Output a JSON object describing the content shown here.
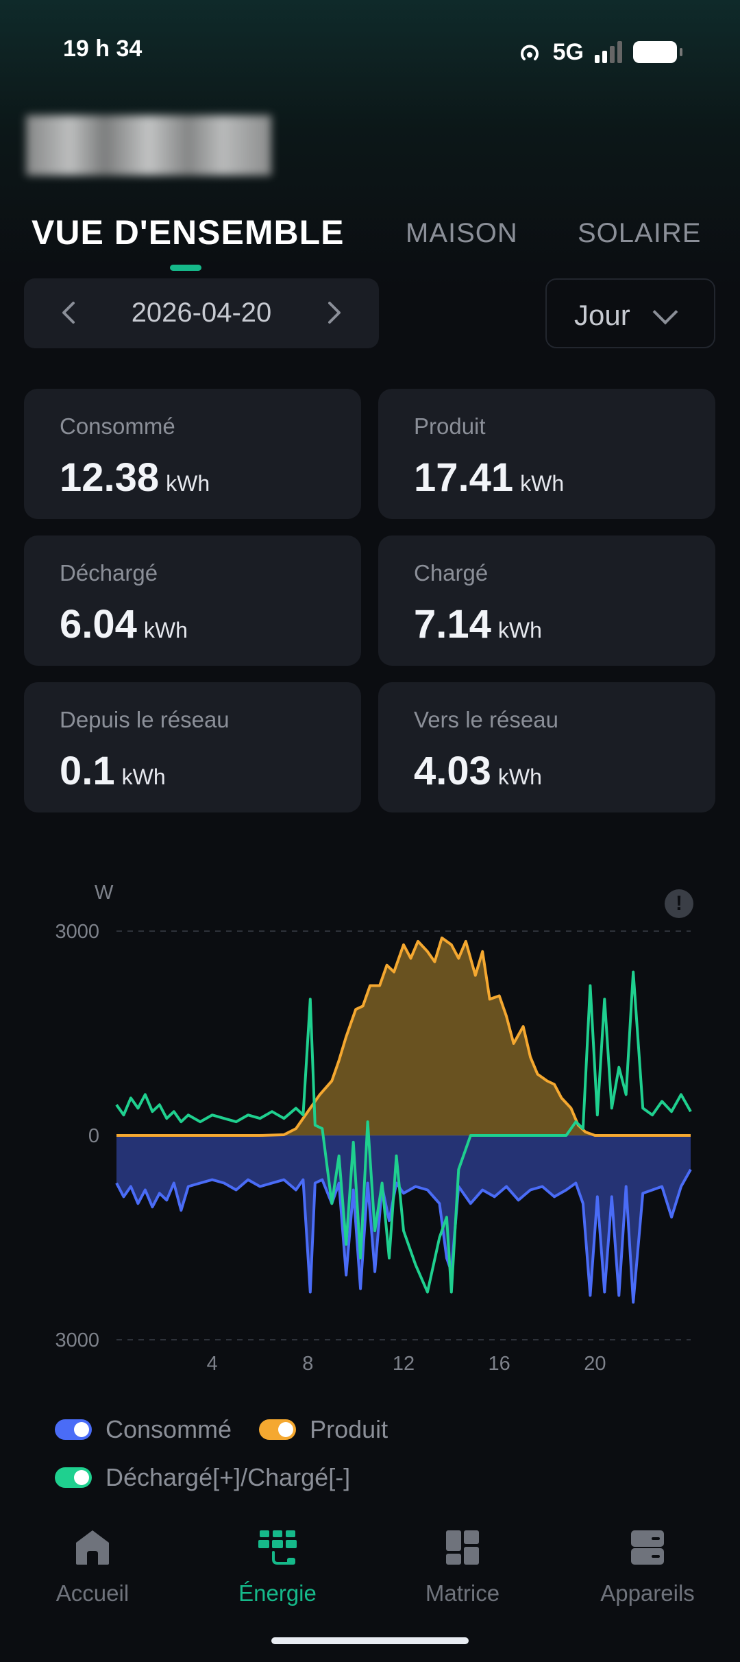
{
  "status": {
    "time": "19 h 34",
    "network": "5G"
  },
  "tabs": [
    {
      "label": "VUE D'ENSEMBLE",
      "active": true
    },
    {
      "label": "MAISON",
      "active": false
    },
    {
      "label": "SOLAIRE",
      "active": false
    }
  ],
  "date_selector": {
    "date": "2026-04-20",
    "prev_icon": "chevron-left-icon",
    "next_icon": "chevron-right-icon"
  },
  "period_selector": {
    "value": "Jour"
  },
  "stats": [
    {
      "label": "Consommé",
      "value": "12.38",
      "unit": "kWh"
    },
    {
      "label": "Produit",
      "value": "17.41",
      "unit": "kWh"
    },
    {
      "label": "Déchargé",
      "value": "6.04",
      "unit": "kWh"
    },
    {
      "label": "Chargé",
      "value": "7.14",
      "unit": "kWh"
    },
    {
      "label": "Depuis le réseau",
      "value": "0.1",
      "unit": "kWh"
    },
    {
      "label": "Vers le réseau",
      "value": "4.03",
      "unit": "kWh"
    }
  ],
  "chart_data": {
    "type": "area",
    "ylabel": "W",
    "ytick_labels": [
      "3000",
      "0",
      "3000"
    ],
    "xtick_labels": [
      "4",
      "8",
      "12",
      "16",
      "20"
    ],
    "xlim": [
      0,
      24
    ],
    "ylim": [
      -3000,
      3000
    ],
    "grid": "dashed horizontal",
    "series": [
      {
        "name": "Consommé",
        "color": "#4a6cf7",
        "x": [
          0,
          0.3,
          0.6,
          0.9,
          1.2,
          1.5,
          1.8,
          2.1,
          2.4,
          2.7,
          3,
          3.5,
          4,
          4.5,
          5,
          5.5,
          6,
          6.5,
          7,
          7.5,
          7.8,
          8.1,
          8.3,
          8.6,
          9,
          9.3,
          9.6,
          9.9,
          10.2,
          10.5,
          10.8,
          11.1,
          11.4,
          11.7,
          12,
          12.5,
          13,
          13.5,
          13.8,
          14,
          14.3,
          14.8,
          15.3,
          15.8,
          16.3,
          16.8,
          17.3,
          17.8,
          18.3,
          18.8,
          19.2,
          19.5,
          19.8,
          20.1,
          20.4,
          20.7,
          21,
          21.3,
          21.6,
          22,
          22.4,
          22.8,
          23.2,
          23.6,
          24
        ],
        "values": [
          -700,
          -900,
          -750,
          -1000,
          -800,
          -1050,
          -850,
          -950,
          -700,
          -1100,
          -750,
          -700,
          -650,
          -700,
          -800,
          -650,
          -750,
          -700,
          -650,
          -800,
          -650,
          -2300,
          -700,
          -650,
          -1000,
          -700,
          -2050,
          -800,
          -2250,
          -700,
          -2000,
          -750,
          -1250,
          -700,
          -850,
          -750,
          -800,
          -1000,
          -1800,
          -2000,
          -750,
          -1000,
          -800,
          -900,
          -750,
          -950,
          -800,
          -750,
          -900,
          -800,
          -700,
          -1000,
          -2350,
          -900,
          -2300,
          -900,
          -2350,
          -750,
          -2450,
          -850,
          -800,
          -750,
          -1200,
          -750,
          -500
        ],
        "units_note": "values in W"
      },
      {
        "name": "Produit",
        "color": "#f5a830",
        "x": [
          0,
          6,
          7,
          7.5,
          8,
          8.5,
          9,
          9.3,
          9.6,
          10,
          10.3,
          10.6,
          11,
          11.3,
          11.6,
          12,
          12.3,
          12.6,
          13,
          13.3,
          13.6,
          14,
          14.3,
          14.6,
          15,
          15.3,
          15.6,
          16,
          16.3,
          16.6,
          17,
          17.3,
          17.6,
          18,
          18.3,
          18.6,
          19,
          19.3,
          19.6,
          20,
          21,
          22,
          23,
          24
        ],
        "values": [
          0,
          0,
          10,
          100,
          350,
          600,
          800,
          1100,
          1450,
          1850,
          1900,
          2200,
          2200,
          2500,
          2400,
          2800,
          2600,
          2850,
          2700,
          2550,
          2900,
          2800,
          2600,
          2850,
          2350,
          2700,
          2000,
          2050,
          1750,
          1350,
          1600,
          1150,
          900,
          800,
          750,
          550,
          400,
          150,
          50,
          0,
          0,
          0,
          0,
          0
        ],
        "units_note": "values in W"
      },
      {
        "name": "Déchargé[+]/Chargé[-]",
        "color": "#1fd08f",
        "x": [
          0,
          0.3,
          0.6,
          0.9,
          1.2,
          1.5,
          1.8,
          2.1,
          2.4,
          2.7,
          3,
          3.5,
          4,
          4.5,
          5,
          5.5,
          6,
          6.5,
          7,
          7.5,
          7.8,
          8.1,
          8.3,
          8.6,
          9,
          9.3,
          9.6,
          9.9,
          10.2,
          10.5,
          10.8,
          11.1,
          11.4,
          11.7,
          12,
          12.5,
          13,
          13.5,
          13.8,
          14,
          14.3,
          14.8,
          15.3,
          15.8,
          16.3,
          16.8,
          17.3,
          17.8,
          18.3,
          18.8,
          19.2,
          19.5,
          19.8,
          20.1,
          20.4,
          20.7,
          21,
          21.3,
          21.6,
          22,
          22.4,
          22.8,
          23.2,
          23.6,
          24
        ],
        "values": [
          450,
          300,
          550,
          400,
          600,
          350,
          450,
          250,
          350,
          200,
          300,
          200,
          300,
          250,
          200,
          300,
          250,
          350,
          250,
          400,
          300,
          2000,
          150,
          100,
          -1000,
          -300,
          -1600,
          -100,
          -1800,
          200,
          -1400,
          -700,
          -1800,
          -300,
          -1400,
          -1900,
          -2300,
          -1500,
          -1200,
          -2300,
          -500,
          0,
          0,
          0,
          0,
          0,
          0,
          0,
          0,
          0,
          200,
          100,
          2200,
          300,
          2000,
          400,
          1000,
          600,
          2400,
          400,
          300,
          500,
          350,
          600,
          350
        ],
        "units_note": "values in W"
      }
    ]
  },
  "legend": [
    {
      "label": "Consommé",
      "color": "#4a6cf7"
    },
    {
      "label": "Produit",
      "color": "#f5a830"
    },
    {
      "label": "Déchargé[+]/Chargé[-]",
      "color": "#1fd08f"
    }
  ],
  "nav": [
    {
      "label": "Accueil",
      "icon": "home-icon",
      "active": false
    },
    {
      "label": "Énergie",
      "icon": "solar-panel-icon",
      "active": true
    },
    {
      "label": "Matrice",
      "icon": "grid-layout-icon",
      "active": false
    },
    {
      "label": "Appareils",
      "icon": "devices-icon",
      "active": false
    }
  ],
  "colors": {
    "accent": "#16b98a",
    "background": "#0b0d11",
    "card": "#1a1d24"
  }
}
